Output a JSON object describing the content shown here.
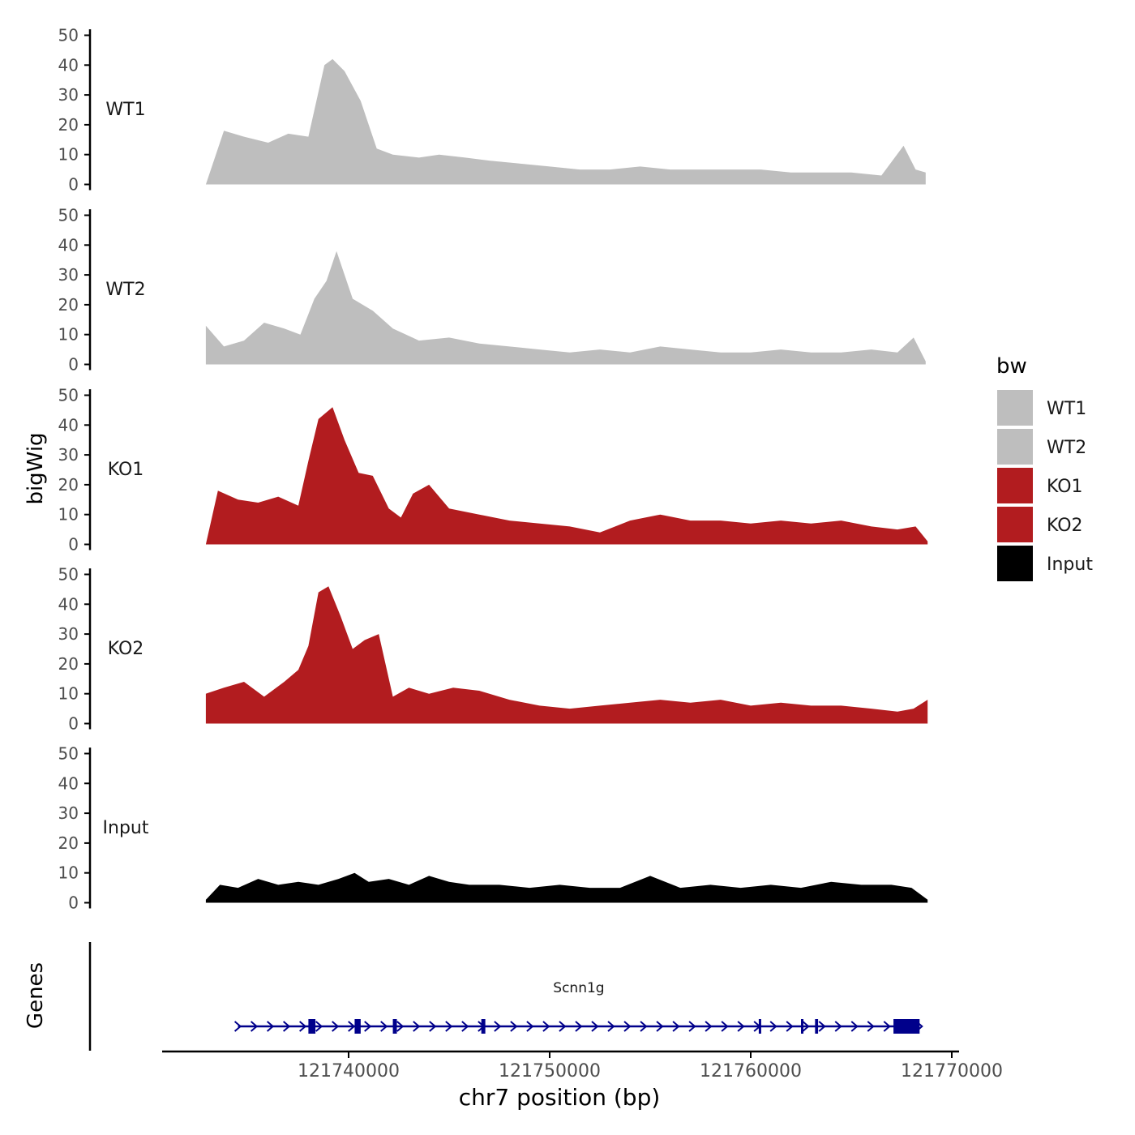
{
  "chart_data": {
    "type": "area",
    "ylabel": "bigWig",
    "xlabel": "chr7 position (bp)",
    "genes_label": "Genes",
    "legend": {
      "title": "bw",
      "position": "right",
      "entries": [
        {
          "label": "WT1",
          "color": "#bebebe"
        },
        {
          "label": "WT2",
          "color": "#bebebe"
        },
        {
          "label": "KO1",
          "color": "#b21c1f"
        },
        {
          "label": "KO2",
          "color": "#b21c1f"
        },
        {
          "label": "Input",
          "color": "#000000"
        }
      ]
    },
    "xlim": [
      121729500,
      121769500
    ],
    "x_ticks": [
      121740000,
      121750000,
      121760000,
      121770000
    ],
    "x_tick_labels": [
      "121740000",
      "121750000",
      "121760000",
      "121770000"
    ],
    "ylim": [
      0,
      52
    ],
    "y_ticks": [
      0,
      10,
      20,
      30,
      40,
      50
    ],
    "y_tick_labels": [
      "0",
      "10",
      "20",
      "30",
      "40",
      "50"
    ],
    "series": [
      {
        "name": "WT1",
        "color": "#bebebe",
        "x": [
          121732900,
          121733800,
          121734800,
          121736000,
          121737000,
          121738000,
          121738800,
          121739200,
          121739800,
          121740600,
          121741400,
          121742200,
          121743500,
          121744500,
          121745800,
          121747000,
          121748500,
          121750000,
          121751500,
          121753000,
          121754500,
          121756000,
          121757500,
          121759000,
          121760500,
          121762000,
          121763500,
          121765000,
          121766500,
          121767600,
          121768200,
          121768700
        ],
        "values": [
          0,
          18,
          16,
          14,
          17,
          16,
          40,
          42,
          38,
          28,
          12,
          10,
          9,
          10,
          9,
          8,
          7,
          6,
          5,
          5,
          6,
          5,
          5,
          5,
          5,
          4,
          4,
          4,
          3,
          13,
          5,
          4
        ]
      },
      {
        "name": "WT2",
        "color": "#bebebe",
        "x": [
          121732900,
          121733800,
          121734800,
          121735800,
          121736800,
          121737600,
          121738300,
          121738900,
          121739400,
          121740200,
          121741200,
          121742200,
          121743500,
          121745000,
          121746500,
          121748000,
          121749500,
          121751000,
          121752500,
          121754000,
          121755500,
          121757000,
          121758500,
          121760000,
          121761500,
          121763000,
          121764500,
          121766000,
          121767300,
          121768100,
          121768700
        ],
        "values": [
          13,
          6,
          8,
          14,
          12,
          10,
          22,
          28,
          38,
          22,
          18,
          12,
          8,
          9,
          7,
          6,
          5,
          4,
          5,
          4,
          6,
          5,
          4,
          4,
          5,
          4,
          4,
          5,
          4,
          9,
          1
        ]
      },
      {
        "name": "KO1",
        "color": "#b21c1f",
        "x": [
          121732900,
          121733500,
          121734500,
          121735500,
          121736500,
          121737500,
          121738000,
          121738500,
          121739200,
          121739800,
          121740500,
          121741200,
          121742000,
          121742600,
          121743200,
          121744000,
          121745000,
          121746500,
          121748000,
          121749500,
          121751000,
          121752500,
          121754000,
          121755500,
          121757000,
          121758500,
          121760000,
          121761500,
          121763000,
          121764500,
          121766000,
          121767300,
          121768200,
          121768800
        ],
        "values": [
          0,
          18,
          15,
          14,
          16,
          13,
          28,
          42,
          46,
          35,
          24,
          23,
          12,
          9,
          17,
          20,
          12,
          10,
          8,
          7,
          6,
          4,
          8,
          10,
          8,
          8,
          7,
          8,
          7,
          8,
          6,
          5,
          6,
          1
        ]
      },
      {
        "name": "KO2",
        "color": "#b21c1f",
        "x": [
          121732900,
          121733800,
          121734800,
          121735800,
          121736800,
          121737500,
          121738000,
          121738500,
          121739000,
          121739600,
          121740200,
          121740800,
          121741500,
          121742200,
          121743000,
          121744000,
          121745200,
          121746500,
          121748000,
          121749500,
          121751000,
          121752500,
          121754000,
          121755500,
          121757000,
          121758500,
          121760000,
          121761500,
          121763000,
          121764500,
          121766000,
          121767300,
          121768100,
          121768800
        ],
        "values": [
          10,
          12,
          14,
          9,
          14,
          18,
          26,
          44,
          46,
          36,
          25,
          28,
          30,
          9,
          12,
          10,
          12,
          11,
          8,
          6,
          5,
          6,
          7,
          8,
          7,
          8,
          6,
          7,
          6,
          6,
          5,
          4,
          5,
          8
        ]
      },
      {
        "name": "Input",
        "color": "#000000",
        "x": [
          121732900,
          121733600,
          121734500,
          121735500,
          121736500,
          121737500,
          121738500,
          121739500,
          121740300,
          121741000,
          121742000,
          121743000,
          121744000,
          121745000,
          121746000,
          121747500,
          121749000,
          121750500,
          121752000,
          121753500,
          121755000,
          121756500,
          121758000,
          121759500,
          121761000,
          121762500,
          121764000,
          121765500,
          121767000,
          121768000,
          121768800
        ],
        "values": [
          1,
          6,
          5,
          8,
          6,
          7,
          6,
          8,
          10,
          7,
          8,
          6,
          9,
          7,
          6,
          6,
          5,
          6,
          5,
          5,
          9,
          5,
          6,
          5,
          6,
          5,
          7,
          6,
          6,
          5,
          1
        ]
      }
    ],
    "gene": {
      "name": "Scnn1g",
      "start": 121734500,
      "end": 121768400,
      "strand": "+",
      "color": "#00008b",
      "exons": [
        [
          121738000,
          121738350
        ],
        [
          121740300,
          121740600
        ],
        [
          121742200,
          121742400
        ],
        [
          121746600,
          121746800
        ],
        [
          121760400,
          121760500
        ],
        [
          121762500,
          121762600
        ],
        [
          121763200,
          121763350
        ],
        [
          121767100,
          121768400
        ]
      ],
      "exon_widths_note": "small exons drawn as ticks"
    }
  }
}
